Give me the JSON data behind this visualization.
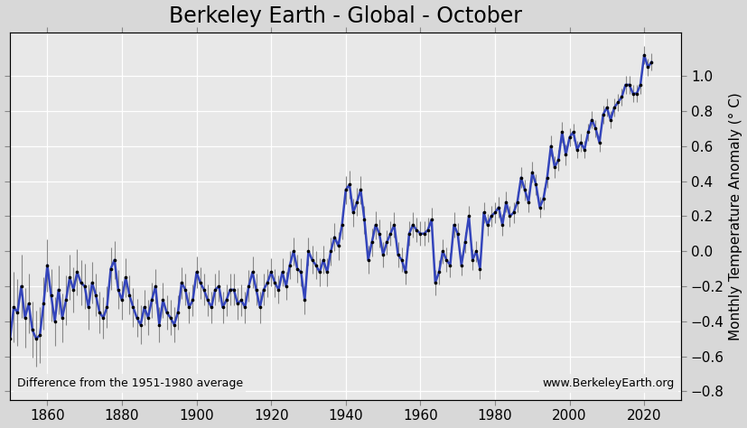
{
  "title": "Berkeley Earth - Global - October",
  "ylabel": "Monthly Temperature Anomaly (° C)",
  "annotation_left": "Difference from the 1951-1980 average",
  "annotation_right": "www.BerkeleyEarth.org",
  "xlim": [
    1850,
    2030
  ],
  "ylim": [
    -0.85,
    1.25
  ],
  "yticks": [
    -0.8,
    -0.6,
    -0.4,
    -0.2,
    0,
    0.2,
    0.4,
    0.6,
    0.8,
    1.0
  ],
  "xticks": [
    1860,
    1880,
    1900,
    1920,
    1940,
    1960,
    1980,
    2000,
    2020
  ],
  "background_color": "#d8d8d8",
  "plot_background_color": "#e8e8e8",
  "line_color": "#3344bb",
  "dot_color": "#000000",
  "errorbar_color": "#888888",
  "title_fontsize": 17,
  "label_fontsize": 11,
  "annot_fontsize": 9,
  "years": [
    1850,
    1851,
    1852,
    1853,
    1854,
    1855,
    1856,
    1857,
    1858,
    1859,
    1860,
    1861,
    1862,
    1863,
    1864,
    1865,
    1866,
    1867,
    1868,
    1869,
    1870,
    1871,
    1872,
    1873,
    1874,
    1875,
    1876,
    1877,
    1878,
    1879,
    1880,
    1881,
    1882,
    1883,
    1884,
    1885,
    1886,
    1887,
    1888,
    1889,
    1890,
    1891,
    1892,
    1893,
    1894,
    1895,
    1896,
    1897,
    1898,
    1899,
    1900,
    1901,
    1902,
    1903,
    1904,
    1905,
    1906,
    1907,
    1908,
    1909,
    1910,
    1911,
    1912,
    1913,
    1914,
    1915,
    1916,
    1917,
    1918,
    1919,
    1920,
    1921,
    1922,
    1923,
    1924,
    1925,
    1926,
    1927,
    1928,
    1929,
    1930,
    1931,
    1932,
    1933,
    1934,
    1935,
    1936,
    1937,
    1938,
    1939,
    1940,
    1941,
    1942,
    1943,
    1944,
    1945,
    1946,
    1947,
    1948,
    1949,
    1950,
    1951,
    1952,
    1953,
    1954,
    1955,
    1956,
    1957,
    1958,
    1959,
    1960,
    1961,
    1962,
    1963,
    1964,
    1965,
    1966,
    1967,
    1968,
    1969,
    1970,
    1971,
    1972,
    1973,
    1974,
    1975,
    1976,
    1977,
    1978,
    1979,
    1980,
    1981,
    1982,
    1983,
    1984,
    1985,
    1986,
    1987,
    1988,
    1989,
    1990,
    1991,
    1992,
    1993,
    1994,
    1995,
    1996,
    1997,
    1998,
    1999,
    2000,
    2001,
    2002,
    2003,
    2004,
    2005,
    2006,
    2007,
    2008,
    2009,
    2010,
    2011,
    2012,
    2013,
    2014,
    2015,
    2016,
    2017,
    2018,
    2019,
    2020,
    2021,
    2022
  ],
  "anomaly": [
    -0.5,
    -0.32,
    -0.35,
    -0.2,
    -0.38,
    -0.3,
    -0.45,
    -0.5,
    -0.48,
    -0.3,
    -0.08,
    -0.25,
    -0.4,
    -0.22,
    -0.38,
    -0.28,
    -0.15,
    -0.22,
    -0.12,
    -0.18,
    -0.2,
    -0.32,
    -0.18,
    -0.25,
    -0.35,
    -0.38,
    -0.32,
    -0.1,
    -0.05,
    -0.22,
    -0.28,
    -0.15,
    -0.25,
    -0.32,
    -0.38,
    -0.42,
    -0.32,
    -0.38,
    -0.28,
    -0.2,
    -0.42,
    -0.28,
    -0.35,
    -0.38,
    -0.42,
    -0.35,
    -0.18,
    -0.22,
    -0.32,
    -0.28,
    -0.12,
    -0.18,
    -0.22,
    -0.28,
    -0.32,
    -0.22,
    -0.2,
    -0.32,
    -0.28,
    -0.22,
    -0.22,
    -0.3,
    -0.28,
    -0.32,
    -0.2,
    -0.12,
    -0.22,
    -0.32,
    -0.22,
    -0.18,
    -0.12,
    -0.18,
    -0.22,
    -0.12,
    -0.2,
    -0.08,
    0.0,
    -0.1,
    -0.12,
    -0.28,
    0.0,
    -0.05,
    -0.08,
    -0.12,
    -0.05,
    -0.12,
    0.0,
    0.08,
    0.03,
    0.15,
    0.35,
    0.38,
    0.22,
    0.28,
    0.35,
    0.18,
    -0.05,
    0.05,
    0.15,
    0.1,
    -0.02,
    0.05,
    0.1,
    0.15,
    -0.02,
    -0.05,
    -0.12,
    0.1,
    0.15,
    0.12,
    0.1,
    0.1,
    0.12,
    0.18,
    -0.18,
    -0.12,
    0.0,
    -0.05,
    -0.08,
    0.15,
    0.1,
    -0.08,
    0.05,
    0.2,
    -0.05,
    0.0,
    -0.1,
    0.22,
    0.15,
    0.2,
    0.22,
    0.25,
    0.15,
    0.28,
    0.2,
    0.22,
    0.28,
    0.42,
    0.35,
    0.28,
    0.45,
    0.38,
    0.25,
    0.3,
    0.42,
    0.6,
    0.48,
    0.52,
    0.68,
    0.55,
    0.65,
    0.68,
    0.58,
    0.62,
    0.58,
    0.68,
    0.75,
    0.7,
    0.62,
    0.78,
    0.82,
    0.75,
    0.82,
    0.85,
    0.88,
    0.95,
    0.95,
    0.9,
    0.9,
    0.95,
    1.12,
    1.05,
    1.08
  ],
  "uncertainty": [
    0.22,
    0.2,
    0.19,
    0.18,
    0.17,
    0.17,
    0.16,
    0.16,
    0.16,
    0.15,
    0.15,
    0.15,
    0.14,
    0.14,
    0.14,
    0.14,
    0.13,
    0.13,
    0.13,
    0.13,
    0.13,
    0.13,
    0.12,
    0.12,
    0.12,
    0.12,
    0.12,
    0.12,
    0.11,
    0.11,
    0.11,
    0.11,
    0.11,
    0.11,
    0.11,
    0.11,
    0.1,
    0.1,
    0.1,
    0.1,
    0.1,
    0.1,
    0.1,
    0.1,
    0.1,
    0.1,
    0.09,
    0.09,
    0.09,
    0.09,
    0.09,
    0.09,
    0.09,
    0.09,
    0.09,
    0.09,
    0.09,
    0.09,
    0.09,
    0.09,
    0.09,
    0.09,
    0.09,
    0.09,
    0.09,
    0.09,
    0.09,
    0.09,
    0.09,
    0.08,
    0.08,
    0.08,
    0.08,
    0.08,
    0.08,
    0.08,
    0.08,
    0.08,
    0.08,
    0.08,
    0.08,
    0.08,
    0.08,
    0.08,
    0.08,
    0.08,
    0.08,
    0.08,
    0.08,
    0.08,
    0.08,
    0.08,
    0.08,
    0.08,
    0.08,
    0.08,
    0.08,
    0.08,
    0.08,
    0.08,
    0.07,
    0.07,
    0.07,
    0.07,
    0.07,
    0.07,
    0.07,
    0.07,
    0.07,
    0.07,
    0.07,
    0.07,
    0.07,
    0.07,
    0.07,
    0.07,
    0.07,
    0.07,
    0.07,
    0.07,
    0.06,
    0.06,
    0.06,
    0.06,
    0.06,
    0.06,
    0.06,
    0.06,
    0.06,
    0.06,
    0.06,
    0.06,
    0.06,
    0.06,
    0.06,
    0.06,
    0.06,
    0.06,
    0.06,
    0.06,
    0.06,
    0.06,
    0.06,
    0.06,
    0.06,
    0.06,
    0.06,
    0.06,
    0.06,
    0.06,
    0.05,
    0.05,
    0.05,
    0.05,
    0.05,
    0.05,
    0.05,
    0.05,
    0.05,
    0.05,
    0.05,
    0.05,
    0.05,
    0.05,
    0.05,
    0.05,
    0.05,
    0.05,
    0.05,
    0.05,
    0.05,
    0.05,
    0.05
  ]
}
